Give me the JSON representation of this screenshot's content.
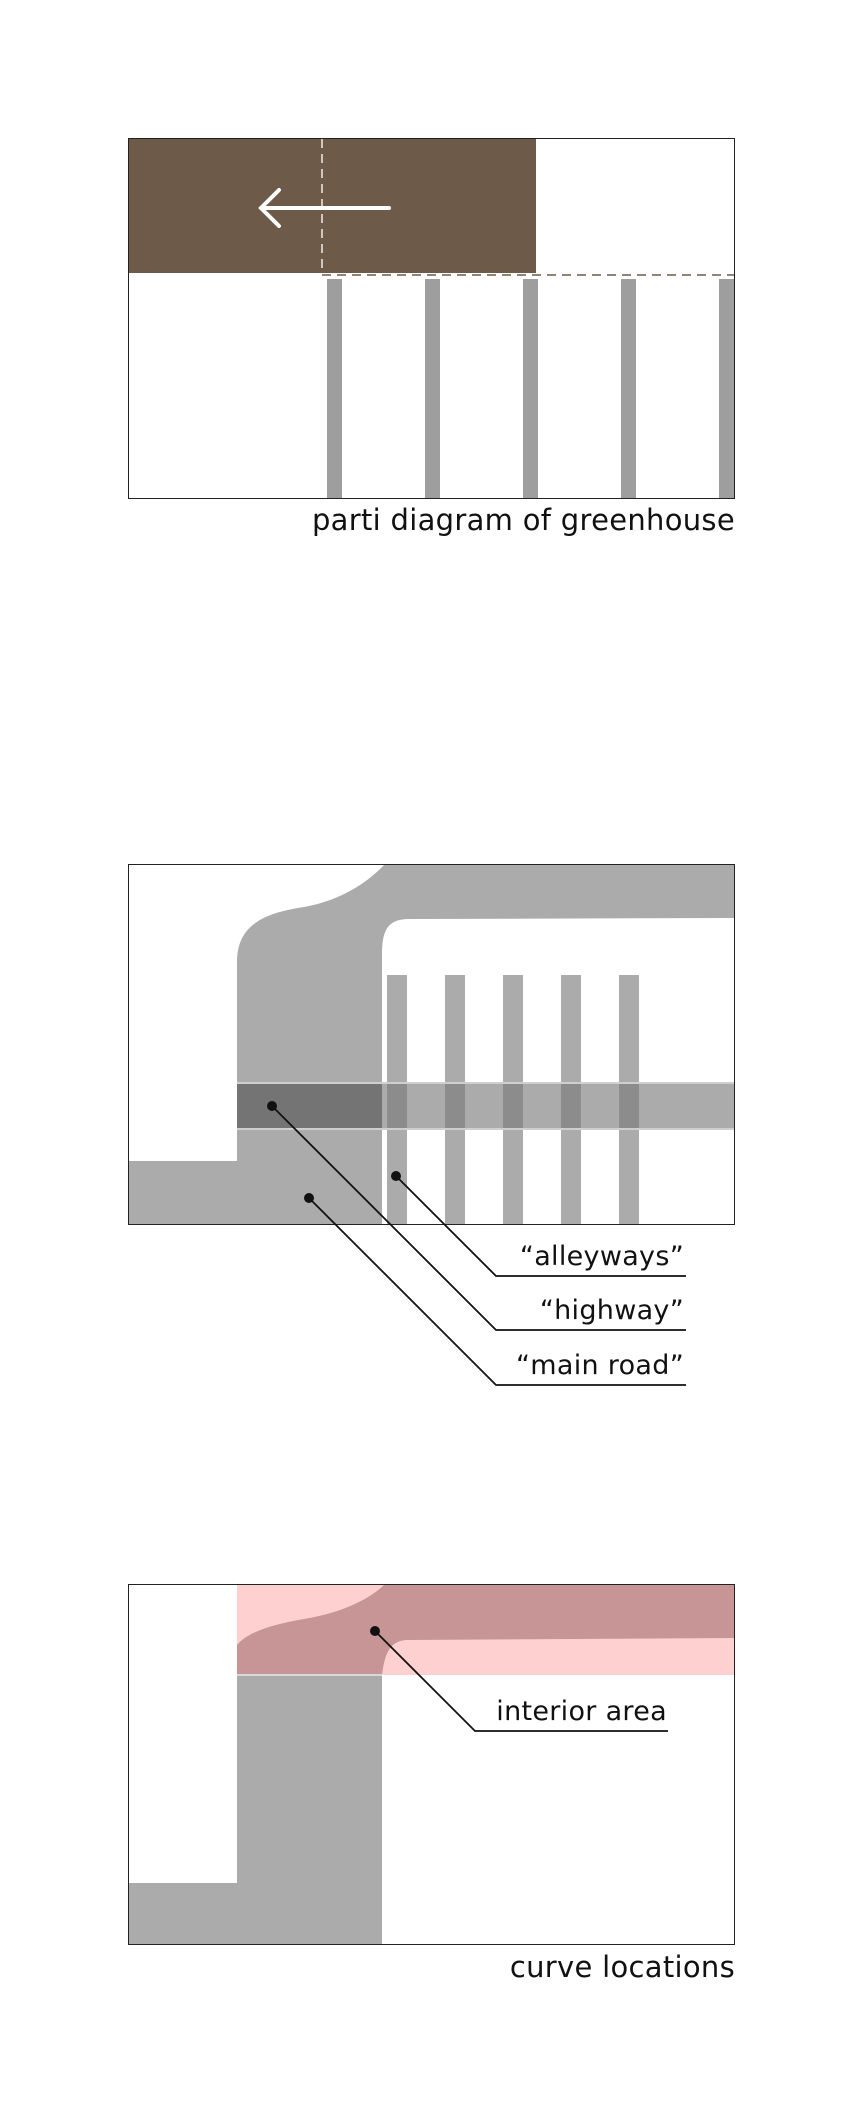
{
  "colors": {
    "brown": "#6d5a48",
    "gray": "#ababab",
    "stripe_gray": "#9e9e9e",
    "dark_gray": "#747474",
    "pink": "#ffd0d0",
    "mauve": "#c79595",
    "line": "#111111"
  },
  "panel1": {
    "caption": "parti diagram of greenhouse",
    "arrow_direction": "left",
    "alley_count": 5
  },
  "panel2": {
    "labels": {
      "alleyways": "“alleyways”",
      "highway": "“highway”",
      "main_road": "“main road”"
    },
    "alley_count": 5
  },
  "panel3": {
    "label": "interior area",
    "caption": "curve locations"
  }
}
